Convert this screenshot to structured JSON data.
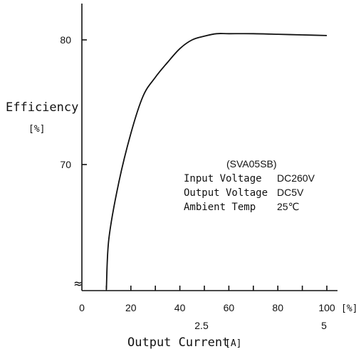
{
  "chart_data": {
    "type": "line",
    "title": "",
    "ylabel": "Efficiency",
    "ylabel_unit": "[%]",
    "xlabel": "Output Current",
    "xlabel_unit": "[A]",
    "x_percent_ticks": [
      "0",
      "20",
      "40",
      "60",
      "80",
      "100"
    ],
    "x_percent_unit": "[%]",
    "x_amp_ticks": [
      "2.5",
      "5"
    ],
    "y_ticks": [
      "80",
      "70"
    ],
    "xlim": [
      0,
      100
    ],
    "ylim": [
      60,
      81.5
    ],
    "y_axis_break": true,
    "grid": false,
    "series": [
      {
        "x": [
          10,
          11,
          15,
          20,
          25,
          30,
          35,
          40,
          45,
          50,
          55,
          60,
          70,
          80,
          90,
          100
        ],
        "y": [
          60,
          64,
          68.5,
          72.5,
          75.5,
          77,
          78.2,
          79.3,
          80,
          80.3,
          80.5,
          80.5,
          80.5,
          80.45,
          80.4,
          80.35
        ]
      }
    ],
    "annotation": {
      "model": "(SVA05SB)",
      "rows": [
        {
          "label": "Input Voltage",
          "value": "DC260V"
        },
        {
          "label": "Output Voltage",
          "value": "DC5V"
        },
        {
          "label": "Ambient Temp",
          "value": "25℃"
        }
      ]
    },
    "axis_break_glyph": "≈"
  }
}
